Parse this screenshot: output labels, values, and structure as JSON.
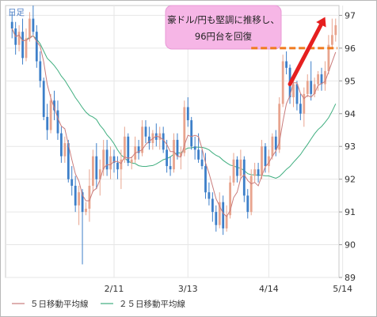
{
  "chart_data": {
    "type": "candlestick",
    "period_label": "日足",
    "y_ticks": [
      89,
      90,
      91,
      92,
      93,
      94,
      95,
      96,
      97
    ],
    "ylim": [
      89,
      97.3
    ],
    "x_ticks": [
      {
        "label": "2/11",
        "index": 29
      },
      {
        "label": "3/13",
        "index": 50
      },
      {
        "label": "4/14",
        "index": 73
      },
      {
        "label": "5/14",
        "index": 94
      }
    ],
    "annotation": {
      "lines": [
        "豪ドル/円も堅調に推移し、",
        "96円台を回復"
      ],
      "box_color": "#f6b6e6",
      "level": 96.0,
      "level_color": "#f07a1e",
      "arrow_color": "#e51f1f"
    },
    "legend": [
      {
        "label": "５日移動平均線",
        "color": "#c97b7b"
      },
      {
        "label": "２５日移動平均線",
        "color": "#3fae7f"
      }
    ],
    "colors": {
      "up": "#e8a48e",
      "down": "#3d7fc9"
    },
    "ohlc": [
      [
        96.8,
        97.1,
        96.3,
        96.6
      ],
      [
        96.6,
        96.8,
        95.8,
        96.1
      ],
      [
        96.1,
        96.7,
        95.9,
        96.5
      ],
      [
        96.5,
        96.9,
        95.5,
        95.7
      ],
      [
        95.7,
        96.6,
        95.6,
        96.3
      ],
      [
        96.3,
        97.1,
        96.2,
        96.9
      ],
      [
        96.9,
        97.3,
        96.4,
        96.5
      ],
      [
        96.5,
        96.7,
        95.4,
        95.6
      ],
      [
        95.6,
        95.9,
        94.8,
        95.0
      ],
      [
        95.0,
        95.1,
        93.8,
        93.9
      ],
      [
        93.9,
        94.3,
        93.2,
        93.5
      ],
      [
        93.5,
        94.6,
        93.4,
        94.4
      ],
      [
        94.4,
        94.7,
        93.8,
        94.1
      ],
      [
        94.1,
        94.4,
        93.2,
        93.4
      ],
      [
        93.4,
        93.6,
        92.5,
        92.7
      ],
      [
        92.7,
        93.3,
        92.5,
        93.1
      ],
      [
        93.1,
        93.2,
        91.9,
        92.0
      ],
      [
        92.0,
        92.4,
        91.5,
        91.8
      ],
      [
        91.8,
        92.1,
        91.0,
        91.2
      ],
      [
        91.2,
        91.8,
        90.6,
        91.6
      ],
      [
        91.6,
        91.7,
        89.4,
        91.0
      ],
      [
        91.0,
        91.3,
        90.9,
        91.1
      ],
      [
        91.1,
        92.3,
        90.7,
        91.8
      ],
      [
        91.8,
        92.9,
        91.6,
        92.7
      ],
      [
        92.7,
        93.1,
        91.7,
        92.0
      ],
      [
        92.0,
        92.6,
        91.5,
        92.3
      ],
      [
        92.3,
        93.2,
        92.1,
        92.9
      ],
      [
        92.9,
        93.2,
        92.1,
        92.3
      ],
      [
        92.3,
        93.0,
        92.0,
        92.7
      ],
      [
        92.7,
        92.9,
        92.2,
        92.5
      ],
      [
        92.5,
        92.7,
        92.0,
        92.3
      ],
      [
        92.3,
        92.9,
        91.7,
        92.6
      ],
      [
        92.6,
        93.6,
        92.5,
        93.3
      ],
      [
        93.3,
        93.4,
        92.4,
        92.5
      ],
      [
        92.5,
        92.7,
        92.3,
        92.6
      ],
      [
        92.6,
        93.3,
        92.5,
        93.0
      ],
      [
        93.0,
        93.2,
        92.6,
        92.8
      ],
      [
        92.8,
        93.8,
        92.7,
        93.6
      ],
      [
        93.6,
        93.8,
        93.1,
        93.3
      ],
      [
        93.3,
        93.6,
        92.9,
        93.1
      ],
      [
        93.1,
        93.5,
        92.9,
        93.4
      ],
      [
        93.4,
        93.7,
        93.0,
        93.2
      ],
      [
        93.2,
        93.6,
        92.9,
        93.4
      ],
      [
        93.4,
        93.6,
        92.8,
        92.9
      ],
      [
        92.9,
        93.2,
        92.2,
        92.4
      ],
      [
        92.4,
        92.7,
        92.1,
        92.3
      ],
      [
        92.3,
        93.4,
        92.2,
        93.2
      ],
      [
        93.2,
        93.4,
        92.6,
        92.7
      ],
      [
        92.7,
        93.0,
        92.3,
        92.8
      ],
      [
        92.8,
        94.4,
        92.7,
        94.2
      ],
      [
        94.2,
        94.5,
        93.6,
        93.8
      ],
      [
        93.8,
        93.9,
        92.9,
        93.0
      ],
      [
        93.0,
        93.3,
        92.6,
        92.9
      ],
      [
        92.9,
        93.4,
        92.5,
        92.6
      ],
      [
        92.6,
        92.9,
        92.3,
        92.4
      ],
      [
        92.4,
        92.8,
        91.4,
        91.6
      ],
      [
        91.6,
        91.9,
        91.2,
        91.4
      ],
      [
        91.4,
        91.6,
        90.7,
        91.0
      ],
      [
        91.0,
        91.2,
        90.4,
        90.6
      ],
      [
        90.6,
        91.6,
        90.5,
        91.3
      ],
      [
        91.3,
        91.5,
        90.3,
        90.5
      ],
      [
        90.5,
        91.2,
        90.4,
        90.9
      ],
      [
        90.9,
        92.1,
        90.8,
        91.9
      ],
      [
        91.9,
        92.8,
        91.8,
        92.6
      ],
      [
        92.6,
        92.7,
        91.9,
        92.1
      ],
      [
        92.1,
        92.9,
        92.0,
        92.6
      ],
      [
        92.6,
        92.7,
        91.3,
        91.5
      ],
      [
        91.5,
        91.7,
        90.8,
        91.0
      ],
      [
        91.0,
        92.3,
        90.9,
        92.1
      ],
      [
        92.1,
        92.5,
        91.9,
        92.3
      ],
      [
        92.3,
        92.5,
        91.9,
        92.1
      ],
      [
        92.1,
        93.2,
        92.0,
        93.0
      ],
      [
        93.0,
        93.1,
        92.2,
        92.4
      ],
      [
        92.4,
        92.9,
        92.2,
        92.7
      ],
      [
        92.7,
        93.4,
        92.6,
        93.3
      ],
      [
        93.3,
        93.5,
        92.7,
        92.9
      ],
      [
        92.9,
        94.5,
        92.8,
        94.3
      ],
      [
        94.3,
        95.8,
        94.2,
        95.6
      ],
      [
        95.6,
        95.9,
        95.2,
        95.4
      ],
      [
        95.4,
        95.5,
        94.3,
        94.5
      ],
      [
        94.5,
        95.1,
        94.2,
        94.9
      ],
      [
        94.9,
        95.0,
        94.1,
        94.3
      ],
      [
        94.3,
        94.6,
        93.8,
        94.0
      ],
      [
        94.0,
        94.8,
        93.6,
        94.6
      ],
      [
        94.6,
        95.2,
        94.5,
        95.0
      ],
      [
        95.0,
        95.6,
        94.4,
        94.6
      ],
      [
        94.6,
        95.1,
        94.5,
        94.9
      ],
      [
        94.9,
        95.3,
        94.7,
        95.2
      ],
      [
        95.2,
        95.4,
        94.7,
        94.9
      ],
      [
        94.9,
        95.6,
        94.7,
        95.3
      ],
      [
        95.3,
        96.4,
        95.2,
        96.1
      ],
      [
        96.1,
        96.9,
        96.0,
        96.4
      ],
      [
        96.4,
        96.9,
        96.2,
        96.7
      ]
    ]
  }
}
